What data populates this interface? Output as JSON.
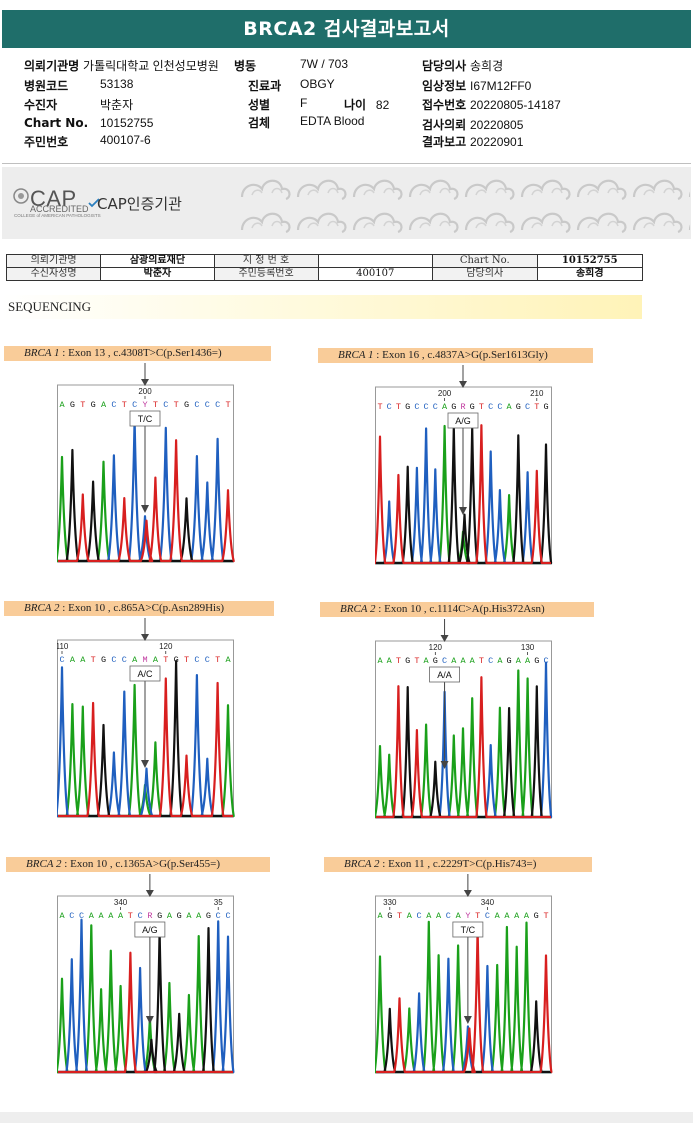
{
  "title": "BRCA2 검사결과보고서",
  "patient_info": [
    {
      "key": "k_hosp",
      "label": "의뢰기관명",
      "value": "가톨릭대학교 인천성모병원"
    },
    {
      "key": "k_ward",
      "label": "병동",
      "value": "7W / 703"
    },
    {
      "key": "k_doctor",
      "label": "담당의사",
      "value": "송희경"
    },
    {
      "key": "k_code",
      "label": "병원코드",
      "value": "53138"
    },
    {
      "key": "k_dept",
      "label": "진료과",
      "value": "OBGY"
    },
    {
      "key": "k_clinical",
      "label": "임상정보",
      "value": "I67M12FF0"
    },
    {
      "key": "k_name",
      "label": "수진자",
      "value": "박춘자"
    },
    {
      "key": "k_sex",
      "label": "성별",
      "value": "F"
    },
    {
      "key": "k_age",
      "label": "나이",
      "value": "82"
    },
    {
      "key": "k_recv",
      "label": "접수번호",
      "value": "20220805-14187"
    },
    {
      "key": "k_chart",
      "label": "Chart No.",
      "value": "10152755"
    },
    {
      "key": "k_specimen",
      "label": "검체",
      "value": "EDTA Blood"
    },
    {
      "key": "k_req",
      "label": "검사의뢰",
      "value": "20220805"
    },
    {
      "key": "k_rrn",
      "label": "주민번호",
      "value": "400107-6"
    },
    {
      "key": "k_report",
      "label": "결과보고",
      "value": "20220901"
    }
  ],
  "cap": {
    "logo_text": "CAP",
    "logo_sub": "ACCREDITED",
    "logo_tiny": "COLLEGE of AMERICAN PATHOLOGISTS",
    "label": "CAP인증기관"
  },
  "patient_table": {
    "row1": [
      "의뢰기관명",
      "삼광의료재단",
      "지 정 번 호",
      "",
      "Chart No.",
      "10152755"
    ],
    "row2": [
      "수신자성명",
      "박춘자",
      "주민등록번호",
      "400107",
      "담당의사",
      "송희경"
    ]
  },
  "sequencing_title": "SEQUENCING",
  "colors": {
    "A": "#1aa01a",
    "C": "#1f5fbf",
    "G": "#111111",
    "T": "#d81f1f",
    "header": "#1f6e6a",
    "label_bg": "#f9cc99"
  },
  "variants": [
    {
      "gene": "BRCA 1",
      "detail": " : Exon 13 , c.4308T>C(p.Ser1436=)",
      "seq": "AGTGACTCYTCTGCCCT",
      "mark_index": 8,
      "call": "T/C",
      "ticks": [
        {
          "label": "200",
          "index": 8
        }
      ]
    },
    {
      "gene": "BRCA 1",
      "detail": " : Exon 16 , c.4837A>G(p.Ser1613Gly)",
      "seq": "TCTGCCCAGRGTCCAGCTG",
      "mark_index": 9,
      "call": "A/G",
      "ticks": [
        {
          "label": "200",
          "index": 7
        },
        {
          "label": "210",
          "index": 17
        }
      ]
    },
    {
      "gene": "BRCA 2",
      "detail": " : Exon 10 , c.865A>C(p.Asn289His)",
      "seq": "CAATGCCAMATGTCCTA",
      "mark_index": 8,
      "call": "A/C",
      "ticks": [
        {
          "label": "110",
          "index": 0
        },
        {
          "label": "120",
          "index": 10
        }
      ]
    },
    {
      "gene": "BRCA 2",
      "detail": " : Exon 10 , c.1114C>A(p.His372Asn)",
      "seq": "AATGTAGCAAATCAGAAGC",
      "mark_index": 7,
      "call": "A/A",
      "ticks": [
        {
          "label": "120",
          "index": 6
        },
        {
          "label": "130",
          "index": 16
        }
      ]
    },
    {
      "gene": "BRCA 2",
      "detail": " : Exon 10 , c.1365A>G(p.Ser455=)",
      "seq": "ACCAAAATCRGAGAAGCC",
      "mark_index": 9,
      "call": "A/G",
      "ticks": [
        {
          "label": "340",
          "index": 6
        },
        {
          "label": "35",
          "index": 16
        }
      ]
    },
    {
      "gene": "BRCA 2",
      "detail": " : Exon 11 , c.2229T>C(p.His743=)",
      "seq": "AGTACAACAYTCAAAAGT",
      "mark_index": 9,
      "call": "T/C",
      "ticks": [
        {
          "label": "330",
          "index": 1
        },
        {
          "label": "340",
          "index": 11
        }
      ]
    }
  ]
}
